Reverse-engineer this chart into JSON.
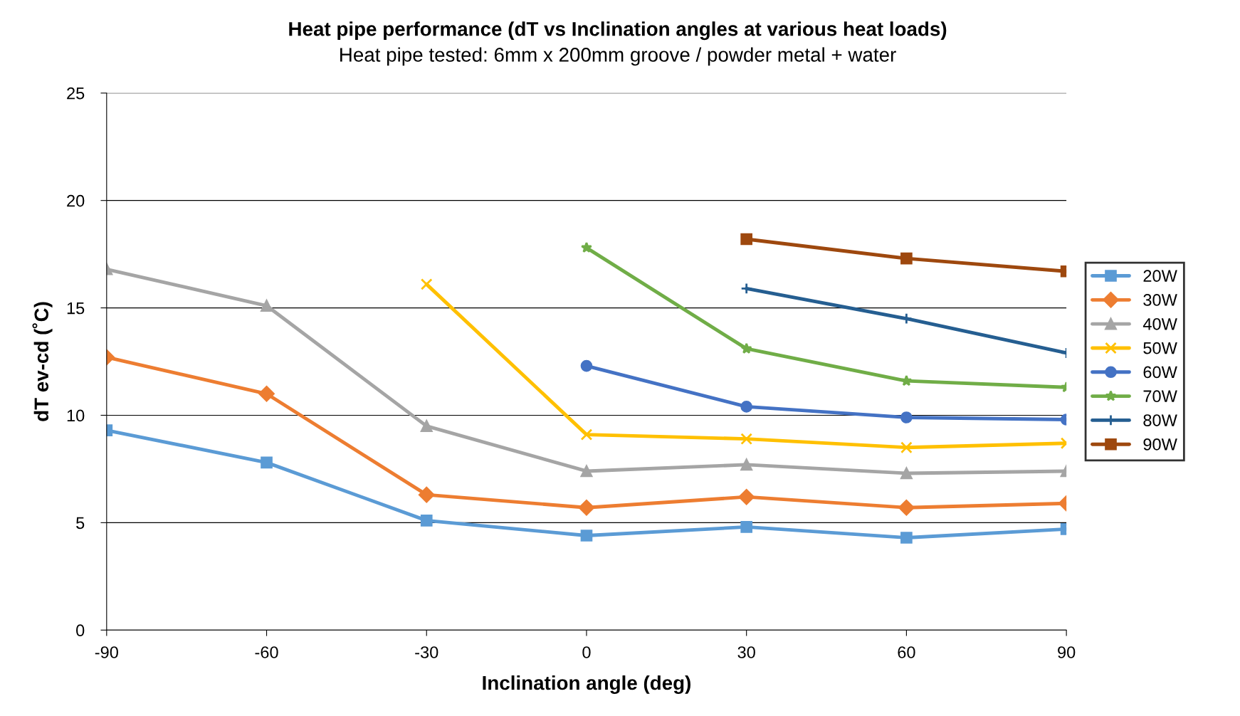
{
  "chart_data": {
    "type": "line",
    "title": "Heat pipe performance (dT vs Inclination angles at various heat loads)",
    "subtitle": "Heat pipe tested: 6mm x 200mm groove / powder metal + water",
    "xlabel": "Inclination angle (deg)",
    "ylabel": "dT ev-cd (˚C)",
    "x": [
      -90,
      -60,
      -30,
      0,
      30,
      60,
      90
    ],
    "series": [
      {
        "name": "20W",
        "color": "#5b9bd5",
        "marker": "square",
        "values": [
          9.3,
          7.8,
          5.1,
          4.4,
          4.8,
          4.3,
          4.7
        ]
      },
      {
        "name": "30W",
        "color": "#ed7d31",
        "marker": "diamond",
        "values": [
          12.7,
          11.0,
          6.3,
          5.7,
          6.2,
          5.7,
          5.9
        ]
      },
      {
        "name": "40W",
        "color": "#a5a5a5",
        "marker": "triangle",
        "values": [
          16.8,
          15.1,
          9.5,
          7.4,
          7.7,
          7.3,
          7.4
        ]
      },
      {
        "name": "50W",
        "color": "#ffc000",
        "marker": "cross",
        "values": [
          null,
          null,
          16.1,
          9.1,
          8.9,
          8.5,
          8.7
        ]
      },
      {
        "name": "60W",
        "color": "#4472c4",
        "marker": "circle",
        "values": [
          null,
          null,
          null,
          12.3,
          10.4,
          9.9,
          9.8
        ]
      },
      {
        "name": "70W",
        "color": "#70ad47",
        "marker": "star",
        "values": [
          null,
          null,
          null,
          17.8,
          13.1,
          11.6,
          11.3
        ]
      },
      {
        "name": "80W",
        "color": "#255e91",
        "marker": "plus",
        "values": [
          null,
          null,
          null,
          null,
          15.9,
          14.5,
          12.9
        ]
      },
      {
        "name": "90W",
        "color": "#9e480e",
        "marker": "square",
        "values": [
          null,
          null,
          null,
          null,
          18.2,
          17.3,
          16.7
        ]
      }
    ],
    "xlim": [
      -90,
      90
    ],
    "xticks": [
      -90,
      -60,
      -30,
      0,
      30,
      60,
      90
    ],
    "ylim": [
      0,
      25
    ],
    "yticks": [
      0,
      5,
      10,
      15,
      20,
      25
    ],
    "grid": "y",
    "legend": "right",
    "line_style": "solid"
  }
}
